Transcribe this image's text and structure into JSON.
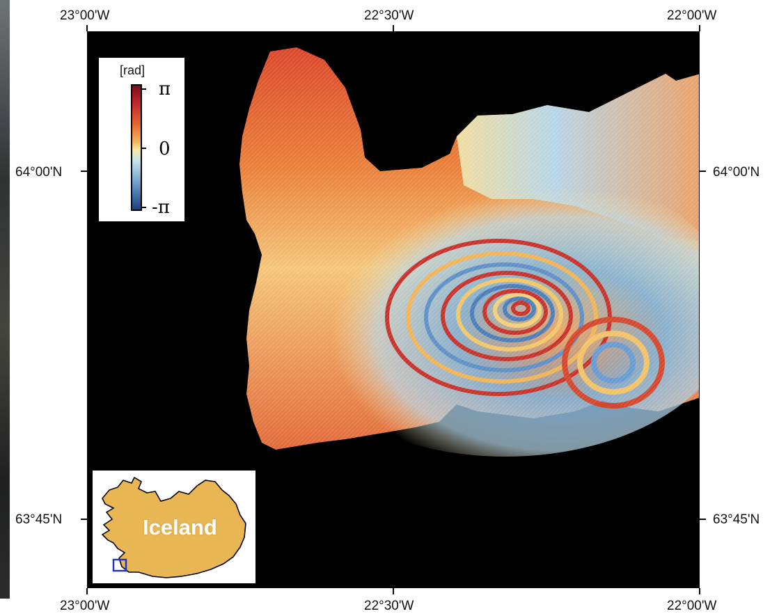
{
  "map": {
    "colors": {
      "background": "#000000",
      "land": "#e8b652",
      "coast": "#000000",
      "region_box": "#1d2fd6"
    },
    "x_ticks": [
      "23°00'W",
      "22°30'W",
      "22°00'W"
    ],
    "y_ticks": [
      "64°00'N",
      "63°45'N"
    ],
    "colorbar": {
      "unit": "[rad]",
      "labels": [
        "π",
        "0",
        "-π"
      ]
    },
    "inset": {
      "label": "Iceland"
    }
  }
}
